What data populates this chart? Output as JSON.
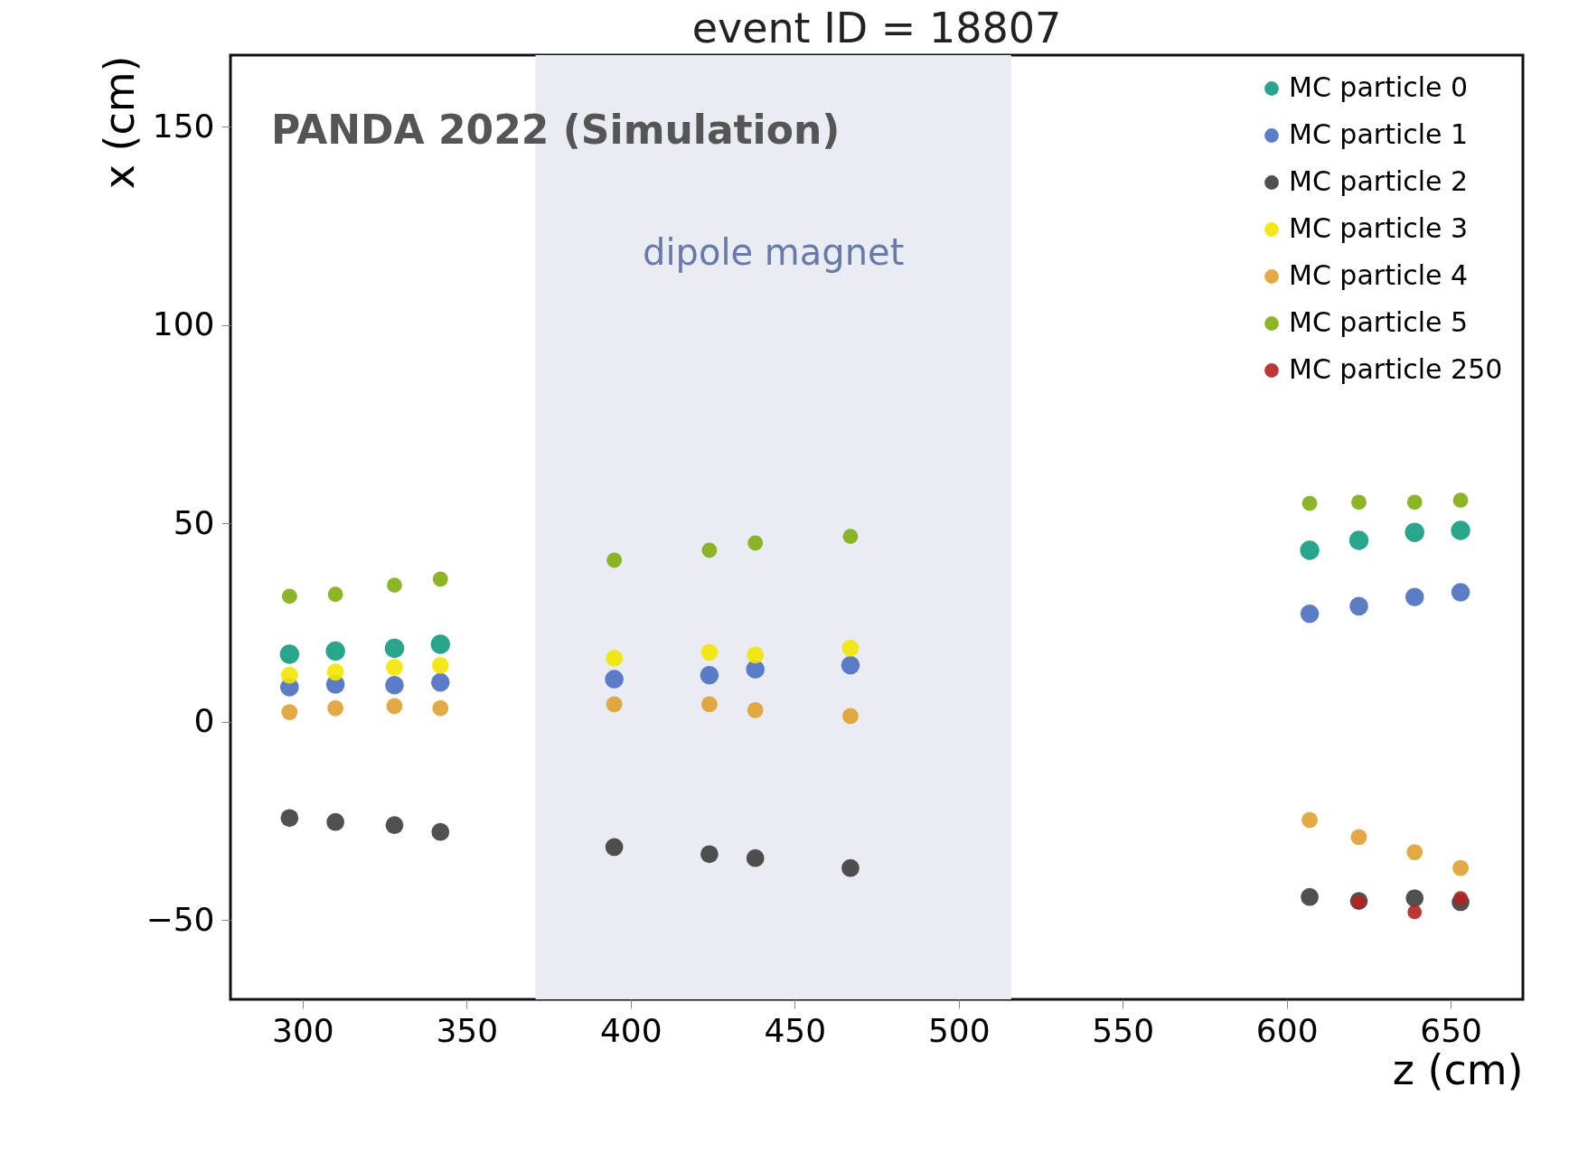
{
  "chart_data": {
    "type": "scatter",
    "title": "event ID = 18807",
    "xlabel": "z (cm)",
    "ylabel": "x (cm)",
    "xlim": [
      278,
      672
    ],
    "ylim": [
      -70,
      168
    ],
    "xticks": [
      300,
      350,
      400,
      450,
      500,
      550,
      600,
      650
    ],
    "yticks": [
      -50,
      0,
      50,
      100,
      150
    ],
    "grid": false,
    "legend": "top right",
    "marker": "circle",
    "annotations": [
      "PANDA 2022 (Simulation)"
    ],
    "bands": [
      {
        "axis": "x",
        "from": 371,
        "to": 516,
        "label": "dipole magnet",
        "color": "#eaecf4"
      }
    ],
    "series": [
      {
        "name": "MC particle 0",
        "color": "#129b7f",
        "x": [
          296,
          310,
          328,
          342,
          607,
          622,
          639,
          653
        ],
        "values": [
          17.0,
          17.8,
          18.5,
          19.5,
          43.2,
          45.7,
          47.7,
          48.2
        ]
      },
      {
        "name": "MC particle 1",
        "color": "#4a6fc0",
        "x": [
          296,
          310,
          328,
          342,
          395,
          424,
          438,
          467,
          607,
          622,
          639,
          653
        ],
        "values": [
          8.7,
          9.4,
          9.2,
          9.9,
          10.7,
          11.7,
          13.2,
          14.2,
          27.2,
          29.1,
          31.4,
          32.6
        ]
      },
      {
        "name": "MC particle 2",
        "color": "#3d3d3d",
        "x": [
          296,
          310,
          328,
          342,
          395,
          424,
          438,
          467,
          607,
          622,
          639,
          653
        ],
        "values": [
          -24.3,
          -25.3,
          -26.1,
          -27.8,
          -31.6,
          -33.4,
          -34.4,
          -36.9,
          -44.2,
          -45.2,
          -44.5,
          -45.5
        ]
      },
      {
        "name": "MC particle 3",
        "color": "#f2e600",
        "x": [
          296,
          310,
          328,
          342,
          395,
          424,
          438,
          467
        ],
        "values": [
          11.7,
          12.5,
          13.7,
          14.2,
          16.0,
          17.5,
          16.8,
          18.5
        ]
      },
      {
        "name": "MC particle 4",
        "color": "#e0a030",
        "x": [
          296,
          310,
          328,
          342,
          395,
          424,
          438,
          467,
          607,
          622,
          639,
          653
        ],
        "values": [
          2.4,
          3.4,
          3.9,
          3.4,
          4.4,
          4.4,
          2.9,
          1.4,
          -24.8,
          -29.1,
          -32.9,
          -36.9
        ]
      },
      {
        "name": "MC particle 5",
        "color": "#7fae10",
        "x": [
          296,
          310,
          328,
          342,
          395,
          424,
          438,
          467,
          607,
          622,
          639,
          653
        ],
        "values": [
          31.6,
          32.1,
          34.4,
          35.9,
          40.7,
          43.2,
          45.0,
          46.7,
          55.0,
          55.3,
          55.3,
          55.8
        ]
      },
      {
        "name": "MC particle 250",
        "color": "#b22222",
        "x": [
          622,
          639,
          653
        ],
        "values": [
          -45.5,
          -48.0,
          -44.5
        ]
      }
    ]
  }
}
